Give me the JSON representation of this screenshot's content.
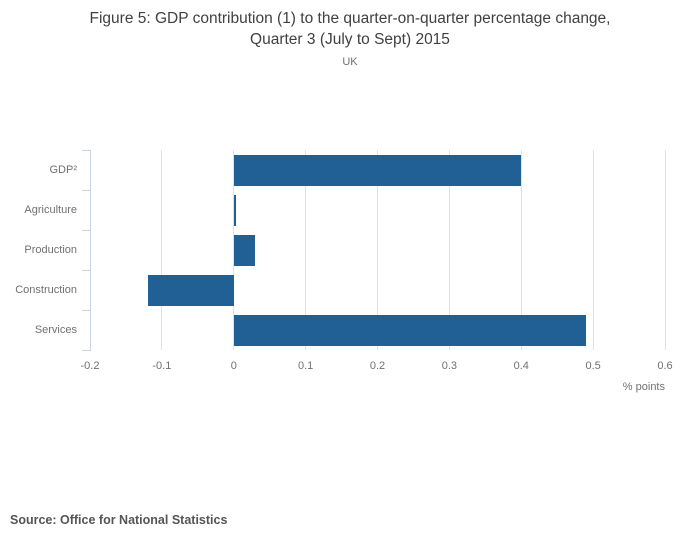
{
  "title": {
    "line1": "Figure 5: GDP contribution (1) to the quarter-on-quarter percentage change,",
    "line2": "Quarter 3 (July to Sept) 2015"
  },
  "subtitle": "UK",
  "xlabel": "% points",
  "source": "Source: Office for National Statistics",
  "chart_data": {
    "type": "bar",
    "orientation": "horizontal",
    "title": "Figure 5: GDP contribution (1) to the quarter-on-quarter percentage change, Quarter 3 (July to Sept) 2015",
    "subtitle": "UK",
    "categories": [
      "GDP²",
      "Agriculture",
      "Production",
      "Construction",
      "Services"
    ],
    "values": [
      0.4,
      0.0,
      0.03,
      -0.12,
      0.49
    ],
    "xlabel": "% points",
    "xlim": [
      -0.2,
      0.6
    ],
    "xticks": [
      -0.2,
      -0.1,
      0,
      0.1,
      0.2,
      0.3,
      0.4,
      0.5,
      0.6
    ],
    "xtick_labels": [
      "-0.2",
      "-0.1",
      "0",
      "0.1",
      "0.2",
      "0.3",
      "0.4",
      "0.5",
      "0.6"
    ],
    "grid": true,
    "legend_position": "none",
    "bar_color": "#206095",
    "gridline_color": "#e1e1e1",
    "axis_line_color": "#c9d5e2"
  }
}
